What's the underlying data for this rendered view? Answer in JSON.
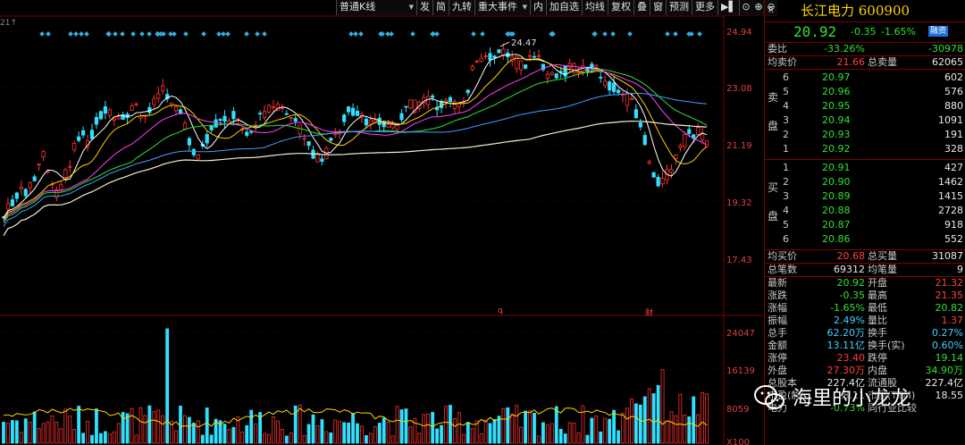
{
  "toolbar": {
    "period_select": "普通K线",
    "buttons": [
      "发",
      "简",
      "九转",
      "重大事件",
      "内",
      "加自选",
      "均线",
      "复权",
      "叠",
      "窗",
      "预测",
      "更多"
    ],
    "icon_names": [
      "binoculars-icon",
      "zoom-in-icon",
      "zoom-out-icon"
    ],
    "icons": [
      "⊙",
      "⊕",
      "⊖"
    ]
  },
  "chart_zoom_label": "21↑",
  "price_axis": [
    "24.94",
    "23.08",
    "21.19",
    "19.32",
    "17.43"
  ],
  "volume_axis": [
    "24047",
    "16139",
    "8059",
    "X100"
  ],
  "peak_label": "24.47",
  "event_markers": [
    "q",
    "财"
  ],
  "colors": {
    "up": "#ff3030",
    "down": "#30e0ff",
    "bg": "#000000",
    "ma5": "#ffffff",
    "ma10": "#ffd200",
    "ma20": "#ff40ff",
    "ma30": "#30e030",
    "ma60": "#40a0ff",
    "ma120": "#f0f0d0"
  },
  "stock": {
    "code_mark": "R",
    "name": "长江电力 600900",
    "price": "20.92",
    "change": "-0.35",
    "change_pct": "-1.65%",
    "badge": "融资"
  },
  "summary": {
    "webi_label": "委比",
    "webi": "-33.26%",
    "webi_diff": "-30978",
    "avg_sell_label": "均卖价",
    "avg_sell": "21.66",
    "total_sell_label": "总卖量",
    "total_sell": "62065"
  },
  "sell_orders": [
    {
      "level": "6",
      "price": "20.97",
      "volume": "602"
    },
    {
      "level": "5",
      "price": "20.96",
      "volume": "576"
    },
    {
      "level": "4",
      "price": "20.95",
      "volume": "880"
    },
    {
      "level": "3",
      "price": "20.94",
      "volume": "1091"
    },
    {
      "level": "2",
      "price": "20.93",
      "volume": "191"
    },
    {
      "level": "1",
      "price": "20.92",
      "volume": "328"
    }
  ],
  "sell_side_label": [
    "卖",
    "盘"
  ],
  "buy_orders": [
    {
      "level": "1",
      "price": "20.91",
      "volume": "427"
    },
    {
      "level": "2",
      "price": "20.90",
      "volume": "1462"
    },
    {
      "level": "3",
      "price": "20.89",
      "volume": "1415"
    },
    {
      "level": "4",
      "price": "20.88",
      "volume": "2728"
    },
    {
      "level": "5",
      "price": "20.87",
      "volume": "918"
    },
    {
      "level": "6",
      "price": "20.86",
      "volume": "552"
    }
  ],
  "buy_side_label": [
    "买",
    "盘"
  ],
  "buy_summary": {
    "avg_buy_label": "均买价",
    "avg_buy": "20.68",
    "total_buy_label": "总买量",
    "total_buy": "31087",
    "deals_label": "总笔数",
    "deals": "69312",
    "avg_deal_label": "均笔量",
    "avg_deal": "9"
  },
  "stats": [
    {
      "l1": "最新",
      "v1": "20.92",
      "c1": "green",
      "l2": "开盘",
      "v2": "21.32",
      "c2": "red"
    },
    {
      "l1": "涨跌",
      "v1": "-0.35",
      "c1": "green",
      "l2": "最高",
      "v2": "21.35",
      "c2": "red"
    },
    {
      "l1": "涨幅",
      "v1": "-1.65%",
      "c1": "green",
      "l2": "最低",
      "v2": "20.82",
      "c2": "green"
    },
    {
      "l1": "振幅",
      "v1": "2.49%",
      "c1": "cyan",
      "l2": "量比",
      "v2": "1.37",
      "c2": "red"
    },
    {
      "l1": "总手",
      "v1": "62.20万",
      "c1": "cyan",
      "l2": "换手",
      "v2": "0.27%",
      "c2": "cyan"
    },
    {
      "l1": "金额",
      "v1": "13.11亿",
      "c1": "cyan",
      "l2": "换手(实)",
      "v2": "0.60%",
      "c2": "cyan"
    },
    {
      "l1": "涨停",
      "v1": "23.40",
      "c1": "red",
      "l2": "跌停",
      "v2": "19.14",
      "c2": "green"
    },
    {
      "l1": "外盘",
      "v1": "27.30万",
      "c1": "red",
      "l2": "内盘",
      "v2": "34.90万",
      "c2": "green"
    },
    {
      "l1": "总股本",
      "v1": "227.4亿",
      "c1": "white",
      "l2": "流通股",
      "v2": "227.4亿",
      "c2": "white"
    },
    {
      "l1": "市盈(静)",
      "v1": "18.11",
      "c1": "white",
      "l2": "市盈(TTM)",
      "v2": "18.55",
      "c2": "white"
    },
    {
      "l1": "电力",
      "v1": "-0.73%",
      "c1": "green",
      "l2": "同行业比较",
      "v2": "",
      "c2": "white"
    }
  ],
  "watermark": "海里的小龙龙"
}
